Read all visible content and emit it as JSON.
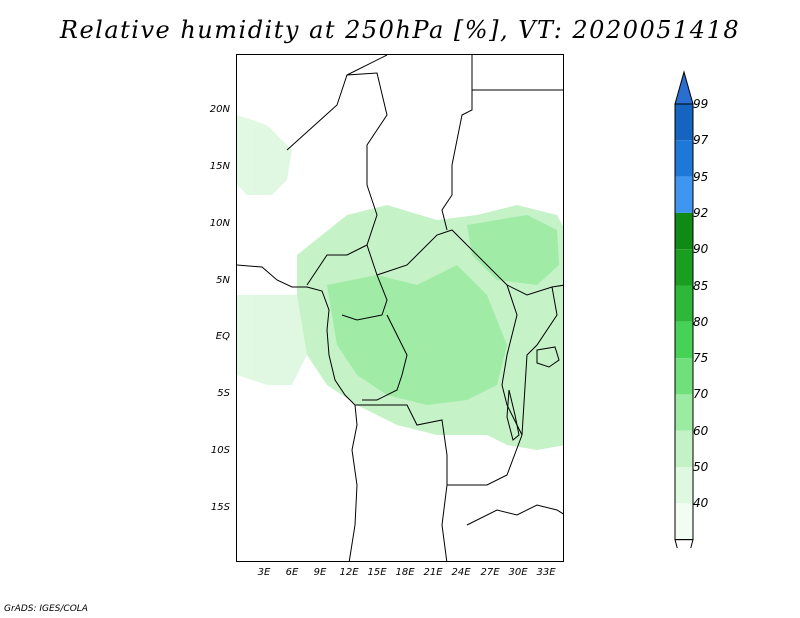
{
  "title": "Relative humidity at 250hPa [%], VT: 2020051418",
  "map": {
    "variable": "Relative humidity",
    "level": "250hPa",
    "units": "%",
    "valid_time": "2020051418",
    "lat_labels": [
      "20N",
      "15N",
      "10N",
      "5N",
      "EQ",
      "5S",
      "10S",
      "15S"
    ],
    "lon_labels": [
      "3E",
      "6E",
      "9E",
      "12E",
      "15E",
      "18E",
      "21E",
      "24E",
      "27E",
      "30E",
      "33E"
    ]
  },
  "colorbar": {
    "levels": [
      {
        "label": "99",
        "color": "#1565c0"
      },
      {
        "label": "97",
        "color": "#1e78d8"
      },
      {
        "label": "95",
        "color": "#3f96f0"
      },
      {
        "label": "92",
        "color": "#0f8a14"
      },
      {
        "label": "90",
        "color": "#1a9e1f"
      },
      {
        "label": "85",
        "color": "#2db83a"
      },
      {
        "label": "80",
        "color": "#46d256"
      },
      {
        "label": "75",
        "color": "#6fe07b"
      },
      {
        "label": "70",
        "color": "#9beba2"
      },
      {
        "label": "60",
        "color": "#c3f2c6"
      },
      {
        "label": "50",
        "color": "#dff8e0"
      },
      {
        "label": "40",
        "color": "#f2fcf2"
      }
    ],
    "top_color": "#2a6fd0",
    "bottom_color": "#ffffff"
  },
  "footer": "GrADS: IGES/COLA"
}
